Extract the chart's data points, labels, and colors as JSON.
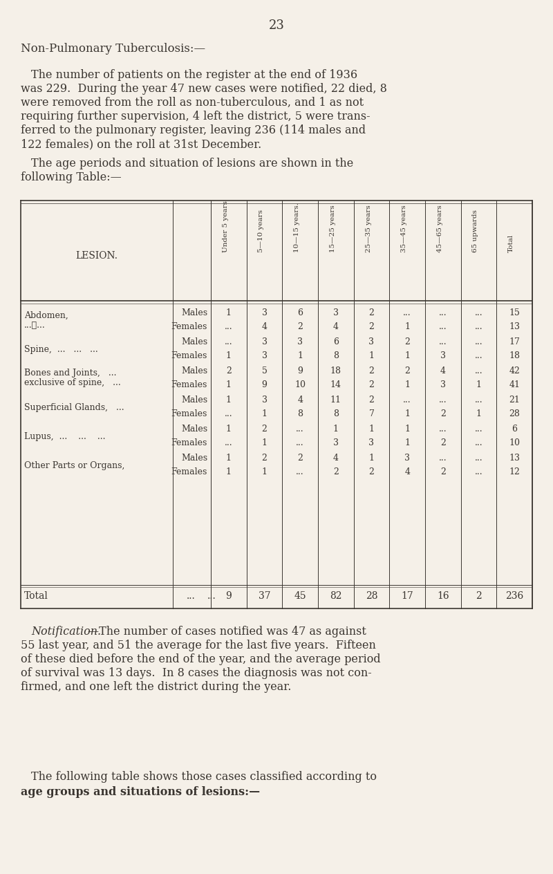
{
  "bg_color": "#f5f0e8",
  "text_color": "#3a3530",
  "page_number": "23",
  "heading": "Non-Pulmonary Tuberculosis:—",
  "paragraph1": "The number of patients on the register at the end of 1936\nwas 229.  During the year 47 new cases were notified, 22 died, 8\nwere removed from the roll as non-tuberculous, and 1 as not\nrequiring further supervision, 4 left the district, 5 were trans-\nferred to the pulmonary register, leaving 236 (114 males and\n122 females) on the roll at 31st December.",
  "table_intro": "The age periods and situation of lesions are shown in the\nfollowing Table:—",
  "col_headers": [
    "Under 5 years",
    "5—10 years",
    "10—15 years.",
    "15—25 years",
    "25—35 years",
    "35—45 years",
    "45—65 years",
    "65 upwards",
    "Total"
  ],
  "lesion_groups": [
    {
      "name": "Abdomen,\n...\t...",
      "name_display": "Abdomen,   ...   ...",
      "rows": [
        {
          "sex": "Males",
          "vals": [
            "1",
            "3",
            "6",
            "3",
            "2",
            "...",
            "...",
            "...",
            "15"
          ]
        },
        {
          "sex": "Females",
          "vals": [
            "...",
            "4",
            "2",
            "4",
            "2",
            "1",
            "...",
            "...",
            "13"
          ]
        }
      ]
    },
    {
      "name": "Spine,  ...   ...   ...",
      "rows": [
        {
          "sex": "Males",
          "vals": [
            "...",
            "3",
            "3",
            "6",
            "3",
            "2",
            "...",
            "...",
            "17"
          ]
        },
        {
          "sex": "Females",
          "vals": [
            "1",
            "3",
            "1",
            "8",
            "1",
            "1",
            "3",
            "...",
            "18"
          ]
        }
      ]
    },
    {
      "name": "Bones and Joints,   ...\nexclusive of spine,   ...",
      "rows": [
        {
          "sex": "Males",
          "vals": [
            "2",
            "5",
            "9",
            "18",
            "2",
            "2",
            "4",
            "...",
            "42"
          ]
        },
        {
          "sex": "Females",
          "vals": [
            "1",
            "9",
            "10",
            "14",
            "2",
            "1",
            "3",
            "1",
            "41"
          ]
        }
      ]
    },
    {
      "name": "Superficial Glands,   ...",
      "rows": [
        {
          "sex": "Males",
          "vals": [
            "1",
            "3",
            "4",
            "11",
            "2",
            "...",
            "...",
            "...",
            "21"
          ]
        },
        {
          "sex": "Females",
          "vals": [
            "...",
            "1",
            "8",
            "8",
            "7",
            "1",
            "2",
            "1",
            "28"
          ]
        }
      ]
    },
    {
      "name": "Lupus,  ...    ...    ...",
      "rows": [
        {
          "sex": "Males",
          "vals": [
            "1",
            "2",
            "...",
            "1",
            "1",
            "1",
            "...",
            "...",
            "6"
          ]
        },
        {
          "sex": "Females",
          "vals": [
            "...",
            "1",
            "...",
            "3",
            "3",
            "1",
            "2",
            "...",
            "10"
          ]
        }
      ]
    },
    {
      "name": "Other Parts or Organs,",
      "rows": [
        {
          "sex": "Males",
          "vals": [
            "1",
            "2",
            "2",
            "4",
            "1",
            "3",
            "...",
            "...",
            "13"
          ]
        },
        {
          "sex": "Females",
          "vals": [
            "1",
            "1",
            "...",
            "2",
            "2",
            "4",
            "2",
            "...",
            "12"
          ]
        }
      ]
    }
  ],
  "totals": [
    "9",
    "37",
    "45",
    "82",
    "28",
    "17",
    "16",
    "2",
    "236"
  ],
  "notification_italic": "Notification.",
  "notification_text": "—The number of cases notified was 47 as against\n55 last year, and 51 the average for the last five years.  Fifteen\nof these died before the end of the year, and the average period\nof survival was 13 days.  In 8 cases the diagnosis was not con-\nfirmed, and one left the district during the year.",
  "closing_text": "The following table shows those cases classified according to\nage groups and situations of lesions:—"
}
